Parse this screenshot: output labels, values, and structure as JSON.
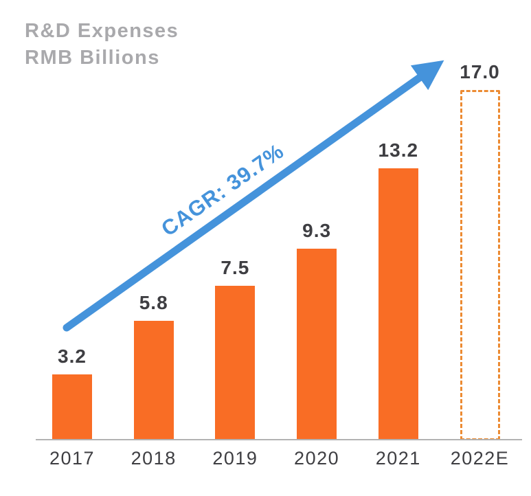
{
  "header": {
    "title_line1": "R&D Expenses",
    "title_line2": "RMB Billions"
  },
  "chart_data": {
    "type": "bar",
    "title": "R&D Expenses RMB Billions",
    "categories": [
      "2017",
      "2018",
      "2019",
      "2020",
      "2021",
      "2022E"
    ],
    "values": [
      3.2,
      5.8,
      7.5,
      9.3,
      13.2,
      17.0
    ],
    "labels": [
      "3.2",
      "5.8",
      "7.5",
      "9.3",
      "13.2",
      "17.0"
    ],
    "estimated": [
      false,
      false,
      false,
      false,
      false,
      true
    ],
    "annotation": {
      "text": "CAGR: 39.7%"
    },
    "xlabel": "",
    "ylabel": "RMB Billions",
    "ylim": [
      0,
      17.5
    ],
    "grid": false,
    "legend": "none",
    "colors": {
      "bar": "#F96D25",
      "estimated_border": "#EC8B33",
      "arrow": "#4593DB",
      "title": "#A9A9AC",
      "label": "#3E3E42",
      "axis": "#B2B2B2"
    }
  }
}
